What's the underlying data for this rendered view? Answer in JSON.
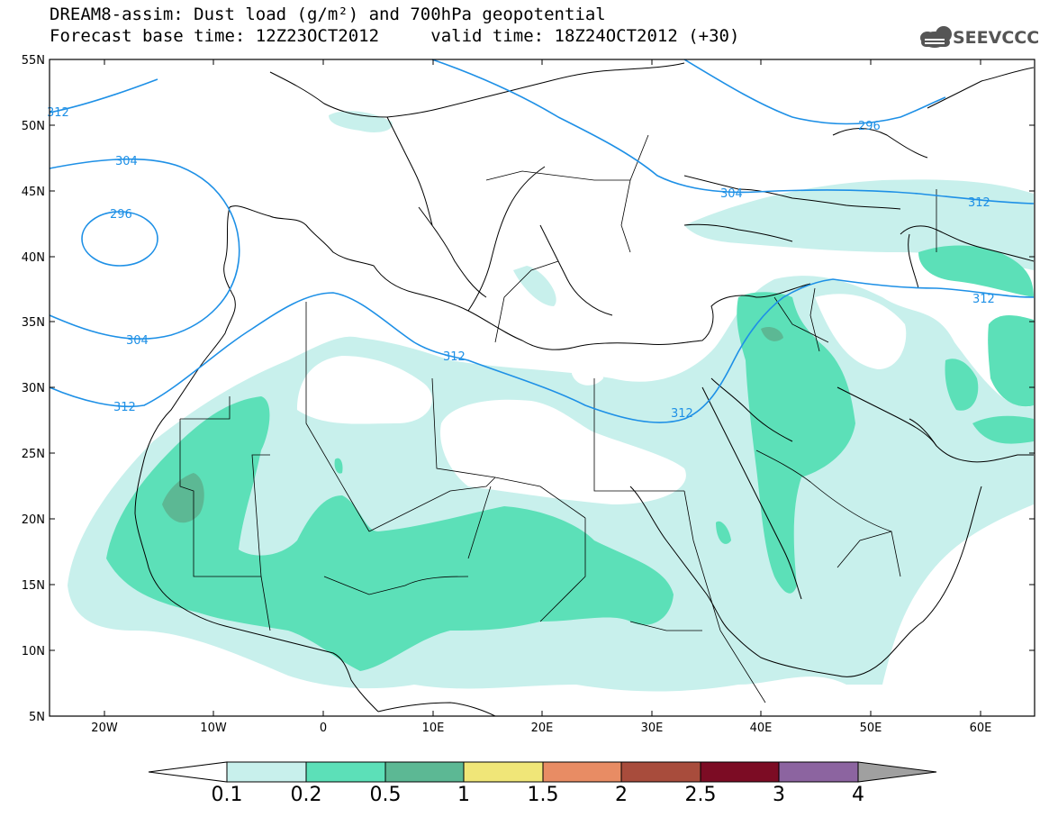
{
  "header": {
    "title_line1": "DREAM8-assim: Dust load (g/m²) and 700hPa geopotential",
    "base_time_label": "Forecast base time: 12Z23OCT2012",
    "valid_time_label": "valid time: 18Z24OCT2012 (+30)",
    "logo_text": "SEEVCCC"
  },
  "map": {
    "lat_ticks": [
      "55N",
      "50N",
      "45N",
      "40N",
      "35N",
      "30N",
      "25N",
      "20N",
      "15N",
      "10N",
      "5N"
    ],
    "lon_ticks": [
      "20W",
      "10W",
      "0",
      "10E",
      "20E",
      "30E",
      "40E",
      "50E",
      "60E"
    ],
    "contour_labels": [
      "312",
      "304",
      "296",
      "304",
      "312",
      "312",
      "312",
      "296",
      "304",
      "312",
      "312"
    ],
    "contour_color": "#1e90e6"
  },
  "colorbar": {
    "labels": [
      "0.1",
      "0.2",
      "0.5",
      "1",
      "1.5",
      "2",
      "2.5",
      "3",
      "4"
    ],
    "colors": [
      "#ffffff",
      "#c8f0ec",
      "#5ce0b8",
      "#5cb894",
      "#f0e678",
      "#e88c64",
      "#a84c3c",
      "#7c0c24",
      "#8c64a0",
      "#a0a0a0"
    ]
  }
}
